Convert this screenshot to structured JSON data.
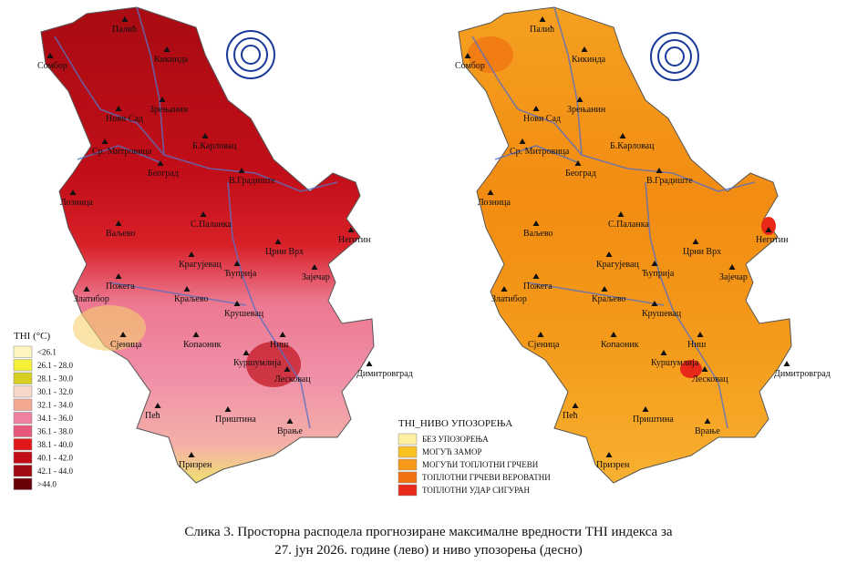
{
  "cities": [
    "Палић",
    "Сомбор",
    "Кикинда",
    "Зрењанин",
    "Нови Сад",
    "Ср. Митровица",
    "Б.Карловац",
    "Београд",
    "В.Градиште",
    "Лозница",
    "Ваљево",
    "С.Паланка",
    "Неготин",
    "Црни Врх",
    "Крагујевац",
    "Ћуприја",
    "Зајечар",
    "Пожега",
    "Златибор",
    "Краљево",
    "Крушевац",
    "Сјеница",
    "Копаоник",
    "Ниш",
    "Куршумлија",
    "Лесковац",
    "Димитровград",
    "Пећ",
    "Приштина",
    "Врање",
    "Призрен"
  ],
  "left_legend": {
    "title": "THI (°C)",
    "items": [
      {
        "label": "<26.1",
        "color": "#fdf5c0"
      },
      {
        "label": "26.1 - 28.0",
        "color": "#f5f03a"
      },
      {
        "label": "28.1 - 30.0",
        "color": "#d8d020"
      },
      {
        "label": "30.1 - 32.0",
        "color": "#f8d8c8"
      },
      {
        "label": "32.1 - 34.0",
        "color": "#f4a890"
      },
      {
        "label": "34.1 - 36.0",
        "color": "#f080a0"
      },
      {
        "label": "36.1 - 38.0",
        "color": "#e85878"
      },
      {
        "label": "38.1 - 40.0",
        "color": "#e01818"
      },
      {
        "label": "40.1 - 42.0",
        "color": "#c00c14"
      },
      {
        "label": "42.1 - 44.0",
        "color": "#a00a10"
      },
      {
        "label": ">44.0",
        "color": "#6a0008"
      }
    ]
  },
  "right_legend": {
    "title": "THI_НИВО УПОЗОРЕЊА",
    "items": [
      {
        "label": "БЕЗ УПОЗОРЕЊА",
        "color": "#fdf0a0"
      },
      {
        "label": "МОГУЋ ЗАМОР",
        "color": "#f8c020"
      },
      {
        "label": "МОГУЋИ ТОПЛОТНИ ГРЧЕВИ",
        "color": "#f59a18"
      },
      {
        "label": "ТОПЛОТНИ ГРЧЕВИ ВЕРОВАТНИ",
        "color": "#f07010"
      },
      {
        "label": "ТОПЛОТНИ УДАР СИГУРАН",
        "color": "#e82818"
      }
    ]
  },
  "caption": {
    "line1": "Слика 3. Просторна расподела прогнозиране максималне вредности THI индекса за",
    "line2": "27. јун 2026. године (лево) и ниво упозорења (десно)"
  }
}
